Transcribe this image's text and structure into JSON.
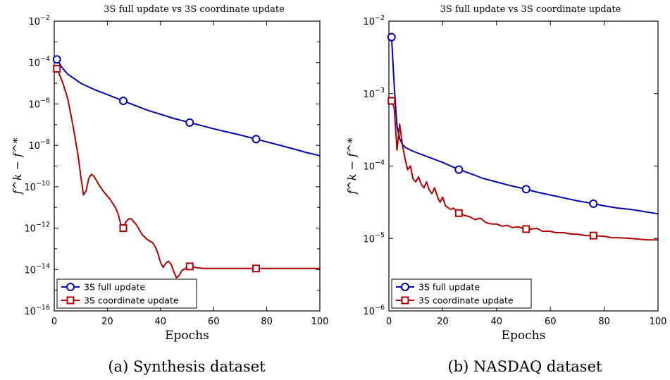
{
  "chart_data": [
    {
      "type": "line",
      "title": "3S full update vs 3S coordinate update",
      "xlabel": "Epochs",
      "ylabel": "f^k − f^*",
      "caption": "(a) Synthesis dataset",
      "xlim": [
        0,
        100
      ],
      "ylim_exp": [
        -16,
        -2
      ],
      "yscale": "log",
      "xticks": [
        "0",
        "20",
        "40",
        "60",
        "80",
        "100"
      ],
      "yticks": [
        {
          "exp": -16,
          "label": "10",
          "sup": "−16"
        },
        {
          "exp": -14,
          "label": "10",
          "sup": "−14"
        },
        {
          "exp": -12,
          "label": "10",
          "sup": "−12"
        },
        {
          "exp": -10,
          "label": "10",
          "sup": "−10"
        },
        {
          "exp": -8,
          "label": "10",
          "sup": "−8"
        },
        {
          "exp": -6,
          "label": "10",
          "sup": "−6"
        },
        {
          "exp": -4,
          "label": "10",
          "sup": "−4"
        },
        {
          "exp": -2,
          "label": "10",
          "sup": "−2"
        }
      ],
      "legend_position": "bottom-left",
      "series": [
        {
          "name": "3S full update",
          "color": "#0000b0",
          "marker": "circle",
          "points": [
            [
              1,
              -3.85
            ],
            [
              3,
              -4.25
            ],
            [
              5,
              -4.55
            ],
            [
              10,
              -5.0
            ],
            [
              15,
              -5.3
            ],
            [
              20,
              -5.55
            ],
            [
              26,
              -5.85
            ],
            [
              30,
              -6.05
            ],
            [
              35,
              -6.3
            ],
            [
              40,
              -6.5
            ],
            [
              45,
              -6.7
            ],
            [
              51,
              -6.9
            ],
            [
              55,
              -7.03
            ],
            [
              60,
              -7.2
            ],
            [
              65,
              -7.35
            ],
            [
              70,
              -7.5
            ],
            [
              76,
              -7.7
            ],
            [
              80,
              -7.83
            ],
            [
              85,
              -8.0
            ],
            [
              90,
              -8.17
            ],
            [
              95,
              -8.35
            ],
            [
              100,
              -8.5
            ]
          ],
          "markers": [
            [
              1,
              -3.85
            ],
            [
              26,
              -5.85
            ],
            [
              51,
              -6.9
            ],
            [
              76,
              -7.7
            ]
          ]
        },
        {
          "name": "3S coordinate update",
          "color": "#b00000",
          "marker": "square",
          "points": [
            [
              1,
              -4.3
            ],
            [
              3,
              -4.9
            ],
            [
              5,
              -5.7
            ],
            [
              7,
              -7.0
            ],
            [
              9,
              -8.5
            ],
            [
              10,
              -9.5
            ],
            [
              11,
              -10.4
            ],
            [
              12,
              -10.2
            ],
            [
              13,
              -9.6
            ],
            [
              14,
              -9.4
            ],
            [
              15,
              -9.5
            ],
            [
              17,
              -9.95
            ],
            [
              19,
              -10.3
            ],
            [
              21,
              -10.6
            ],
            [
              23,
              -11.0
            ],
            [
              24,
              -11.3
            ],
            [
              25,
              -11.8
            ],
            [
              26,
              -12.0
            ],
            [
              27,
              -11.7
            ],
            [
              28,
              -11.55
            ],
            [
              29,
              -11.55
            ],
            [
              31,
              -11.85
            ],
            [
              33,
              -12.3
            ],
            [
              35,
              -12.55
            ],
            [
              37,
              -12.7
            ],
            [
              38,
              -12.9
            ],
            [
              39,
              -13.2
            ],
            [
              40,
              -13.65
            ],
            [
              41,
              -13.9
            ],
            [
              42,
              -13.7
            ],
            [
              43,
              -13.6
            ],
            [
              44,
              -13.75
            ],
            [
              45,
              -14.1
            ],
            [
              46,
              -14.4
            ],
            [
              47,
              -14.3
            ],
            [
              48,
              -14.05
            ],
            [
              50,
              -13.9
            ],
            [
              51,
              -13.85
            ],
            [
              53,
              -13.9
            ],
            [
              56,
              -13.95
            ],
            [
              60,
              -13.95
            ],
            [
              70,
              -13.95
            ],
            [
              76,
              -13.95
            ],
            [
              80,
              -13.95
            ],
            [
              90,
              -13.95
            ],
            [
              100,
              -13.95
            ]
          ],
          "markers": [
            [
              1,
              -4.3
            ],
            [
              26,
              -12.0
            ],
            [
              51,
              -13.85
            ],
            [
              76,
              -13.95
            ]
          ]
        }
      ]
    },
    {
      "type": "line",
      "title": "3S full update vs 3S coordinate update",
      "xlabel": "Epochs",
      "ylabel": "f^k − f^*",
      "caption": "(b) NASDAQ dataset",
      "xlim": [
        0,
        100
      ],
      "ylim_exp": [
        -6,
        -2
      ],
      "yscale": "log",
      "xticks": [
        "0",
        "20",
        "40",
        "60",
        "80",
        "100"
      ],
      "yticks": [
        {
          "exp": -6,
          "label": "10",
          "sup": "−6"
        },
        {
          "exp": -5,
          "label": "10",
          "sup": "−5"
        },
        {
          "exp": -4,
          "label": "10",
          "sup": "−4"
        },
        {
          "exp": -3,
          "label": "10",
          "sup": "−3"
        },
        {
          "exp": -2,
          "label": "10",
          "sup": "−2"
        }
      ],
      "legend_position": "bottom-left",
      "series": [
        {
          "name": "3S full update",
          "color": "#0000b0",
          "marker": "circle",
          "points": [
            [
              1,
              -2.22
            ],
            [
              2,
              -2.9
            ],
            [
              3,
              -3.45
            ],
            [
              4,
              -3.62
            ],
            [
              5,
              -3.7
            ],
            [
              6,
              -3.74
            ],
            [
              8,
              -3.78
            ],
            [
              10,
              -3.81
            ],
            [
              15,
              -3.88
            ],
            [
              20,
              -3.95
            ],
            [
              26,
              -4.05
            ],
            [
              30,
              -4.1
            ],
            [
              35,
              -4.17
            ],
            [
              40,
              -4.22
            ],
            [
              45,
              -4.27
            ],
            [
              51,
              -4.32
            ],
            [
              55,
              -4.36
            ],
            [
              60,
              -4.4
            ],
            [
              65,
              -4.44
            ],
            [
              70,
              -4.48
            ],
            [
              76,
              -4.52
            ],
            [
              80,
              -4.55
            ],
            [
              85,
              -4.58
            ],
            [
              90,
              -4.6
            ],
            [
              95,
              -4.63
            ],
            [
              100,
              -4.66
            ]
          ],
          "markers": [
            [
              1,
              -2.22
            ],
            [
              26,
              -4.05
            ],
            [
              51,
              -4.32
            ],
            [
              76,
              -4.52
            ]
          ]
        },
        {
          "name": "3S coordinate update",
          "color": "#b00000",
          "marker": "square",
          "points": [
            [
              1,
              -3.1
            ],
            [
              2,
              -3.2
            ],
            [
              3,
              -3.78
            ],
            [
              4,
              -3.42
            ],
            [
              5,
              -3.7
            ],
            [
              6,
              -3.9
            ],
            [
              7,
              -4.05
            ],
            [
              8,
              -4.0
            ],
            [
              9,
              -4.18
            ],
            [
              10,
              -4.22
            ],
            [
              11,
              -4.15
            ],
            [
              12,
              -4.25
            ],
            [
              13,
              -4.3
            ],
            [
              14,
              -4.22
            ],
            [
              15,
              -4.33
            ],
            [
              16,
              -4.38
            ],
            [
              17,
              -4.3
            ],
            [
              18,
              -4.42
            ],
            [
              19,
              -4.5
            ],
            [
              20,
              -4.43
            ],
            [
              21,
              -4.55
            ],
            [
              23,
              -4.6
            ],
            [
              24,
              -4.58
            ],
            [
              26,
              -4.65
            ],
            [
              28,
              -4.68
            ],
            [
              30,
              -4.7
            ],
            [
              32,
              -4.74
            ],
            [
              34,
              -4.72
            ],
            [
              36,
              -4.78
            ],
            [
              38,
              -4.8
            ],
            [
              40,
              -4.8
            ],
            [
              42,
              -4.83
            ],
            [
              44,
              -4.82
            ],
            [
              46,
              -4.85
            ],
            [
              48,
              -4.84
            ],
            [
              51,
              -4.87
            ],
            [
              53,
              -4.87
            ],
            [
              55,
              -4.86
            ],
            [
              57,
              -4.9
            ],
            [
              60,
              -4.9
            ],
            [
              62,
              -4.92
            ],
            [
              65,
              -4.92
            ],
            [
              68,
              -4.94
            ],
            [
              70,
              -4.94
            ],
            [
              73,
              -4.96
            ],
            [
              76,
              -4.96
            ],
            [
              80,
              -4.97
            ],
            [
              83,
              -4.99
            ],
            [
              86,
              -4.99
            ],
            [
              90,
              -5.0
            ],
            [
              93,
              -5.01
            ],
            [
              96,
              -5.02
            ],
            [
              100,
              -5.02
            ]
          ],
          "markers": [
            [
              1,
              -3.1
            ],
            [
              26,
              -4.65
            ],
            [
              51,
              -4.87
            ],
            [
              76,
              -4.96
            ]
          ]
        }
      ]
    }
  ]
}
